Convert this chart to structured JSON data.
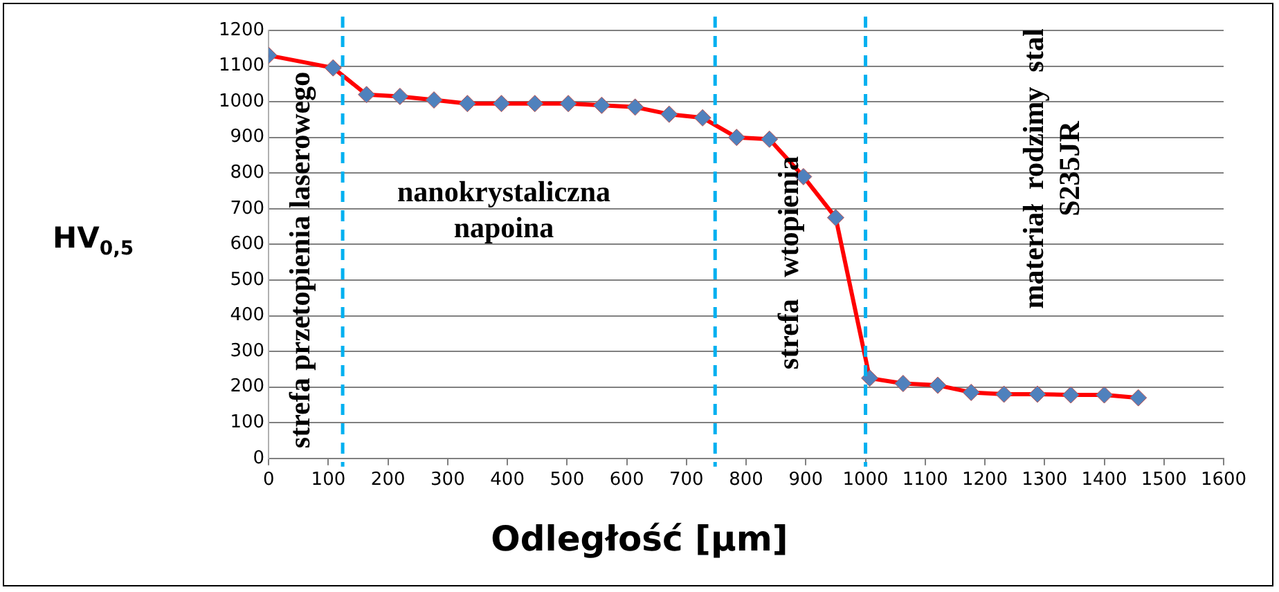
{
  "chart_data": {
    "type": "line",
    "xlabel": "Odległość [μm]",
    "ylabel": "HV$_{0,5}$",
    "x": [
      0,
      108,
      164,
      220,
      277,
      333,
      390,
      446,
      502,
      558,
      614,
      671,
      727,
      784,
      839,
      896,
      950,
      1007,
      1063,
      1121,
      1177,
      1232,
      1288,
      1344,
      1400,
      1457
    ],
    "series": [
      {
        "color": "#ff0000",
        "values": [
          1130,
          1095,
          1020,
          1015,
          1005,
          995,
          995,
          995,
          995,
          990,
          985,
          965,
          955,
          900,
          895,
          790,
          675,
          225,
          210,
          205,
          185,
          180,
          180,
          178,
          178,
          170
        ]
      }
    ],
    "xlim": [
      0,
      1600
    ],
    "xticks": [
      0,
      100,
      200,
      300,
      400,
      500,
      600,
      700,
      800,
      900,
      1000,
      1100,
      1200,
      1300,
      1400,
      1500,
      1600
    ],
    "ylim": [
      0,
      1200
    ],
    "yticks": [
      0,
      100,
      200,
      300,
      400,
      500,
      600,
      700,
      800,
      900,
      1000,
      1100,
      1200
    ],
    "grid": "y",
    "legend": false,
    "marker": "diamond",
    "line_style": "solid",
    "ref_lines": [
      {
        "axis": "x",
        "value": 124,
        "color": "#00b0f0",
        "line_style": "dashed"
      },
      {
        "axis": "x",
        "value": 748,
        "color": "#00b0f0",
        "line_style": "dashed"
      },
      {
        "axis": "x",
        "value": 1000,
        "color": "#00b0f0",
        "line_style": "dashed"
      }
    ],
    "annotations": [
      "strefa przetopienia laserowego",
      "nanokrystaliczna\nnapoina",
      "strefa   wtopienia",
      "materiał  rodzimy  stal\nS235JR"
    ]
  }
}
